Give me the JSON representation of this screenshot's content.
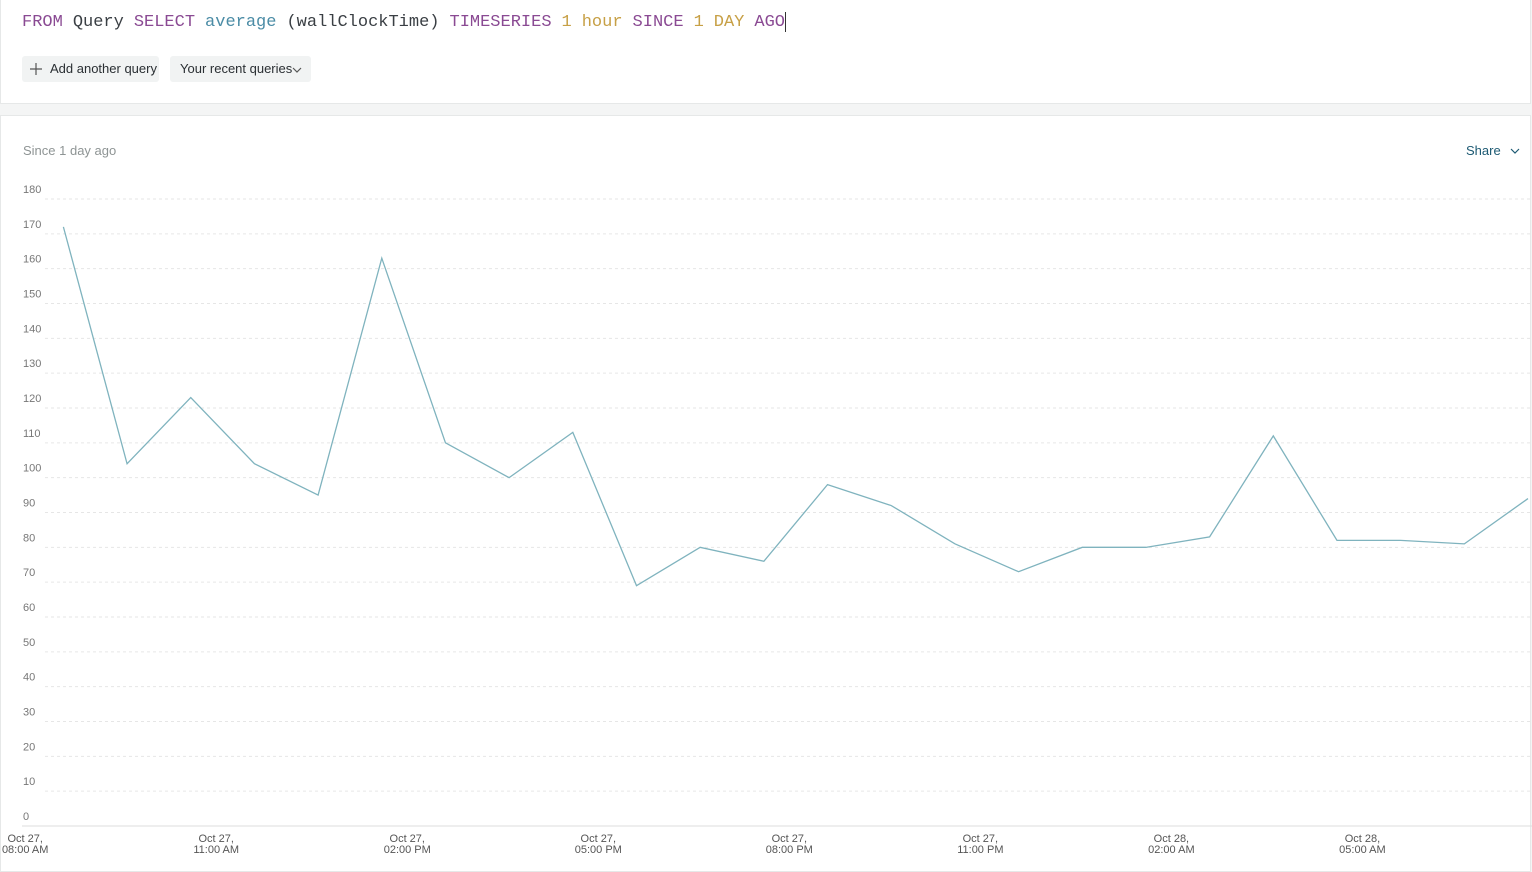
{
  "query": {
    "tokens": [
      {
        "text": "FROM",
        "color": "#8a4a93"
      },
      {
        "text": "Query",
        "color": "#3a3f44"
      },
      {
        "text": "SELECT",
        "color": "#8a4a93"
      },
      {
        "text": "average",
        "color": "#4b8ca6"
      },
      {
        "text": "(wallClockTime)",
        "color": "#3a3f44"
      },
      {
        "text": "TIMESERIES",
        "color": "#8a4a93"
      },
      {
        "text": "1",
        "color": "#c7a046"
      },
      {
        "text": "hour",
        "color": "#c7a046"
      },
      {
        "text": "SINCE",
        "color": "#8a4a93"
      },
      {
        "text": "1",
        "color": "#c7a046"
      },
      {
        "text": "DAY",
        "color": "#c7a046"
      },
      {
        "text": "AGO",
        "color": "#8a4a93"
      }
    ],
    "buttons": [
      "Add another query",
      "Your recent queries"
    ]
  },
  "panel": {
    "subtitle": "Since 1 day ago",
    "share": "Share"
  },
  "chart_data": {
    "type": "line",
    "color": "#7fb3be",
    "grid": true,
    "categories": [
      null,
      null,
      null,
      null,
      null,
      null,
      null,
      null,
      null,
      null,
      null,
      null,
      null,
      null,
      null,
      null,
      null,
      null,
      null,
      null,
      null,
      null,
      null,
      null
    ],
    "values": [
      172,
      104,
      123,
      104,
      95,
      163,
      110,
      100,
      113,
      69,
      80,
      76,
      98,
      92,
      81,
      73,
      80,
      80,
      83,
      112,
      82,
      82,
      81,
      94
    ],
    "ylim": [
      0,
      180
    ],
    "yticks": [
      0,
      10,
      20,
      30,
      40,
      50,
      60,
      70,
      80,
      90,
      100,
      110,
      120,
      130,
      140,
      150,
      160,
      170,
      180
    ],
    "xlim": [
      -0.65,
      23
    ],
    "xticks": [
      {
        "value": -0.6,
        "label": "Oct 27,\n08:00 AM"
      },
      {
        "value": 2.4,
        "label": "Oct 27,\n11:00 AM"
      },
      {
        "value": 5.4,
        "label": "Oct 27,\n02:00 PM"
      },
      {
        "value": 8.4,
        "label": "Oct 27,\n05:00 PM"
      },
      {
        "value": 11.4,
        "label": "Oct 27,\n08:00 PM"
      },
      {
        "value": 14.4,
        "label": "Oct 27,\n11:00 PM"
      },
      {
        "value": 17.4,
        "label": "Oct 28,\n02:00 AM"
      },
      {
        "value": 20.4,
        "label": "Oct 28,\n05:00 AM"
      }
    ]
  }
}
